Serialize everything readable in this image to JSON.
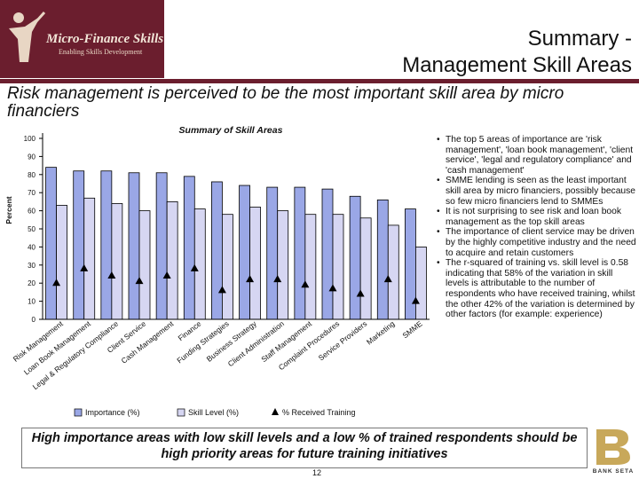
{
  "header": {
    "logo_title": "Micro-Finance Skills Project",
    "logo_subtitle": "Enabling Skills Development",
    "title_line1": "Summary -",
    "title_line2": "Management Skill Areas",
    "accent_color": "#6b1e2e"
  },
  "subtitle": "Risk management is perceived to be the most important skill area by micro financiers",
  "chart_data": {
    "type": "bar",
    "title": "Summary of Skill Areas",
    "ylabel": "Percent",
    "ylim": [
      0,
      100
    ],
    "yticks": [
      0,
      10,
      20,
      30,
      40,
      50,
      60,
      70,
      80,
      90,
      100
    ],
    "categories": [
      "Risk Management",
      "Loan Book Management",
      "Legal & Regulatory Compliance",
      "Client Service",
      "Cash Management",
      "Finance",
      "Funding Strategies",
      "Business Strategy",
      "Client Administration",
      "Staff Management",
      "Complaint Procedures",
      "Service Providers",
      "Marketing",
      "SMME"
    ],
    "series": [
      {
        "name": "Importance (%)",
        "type": "bar",
        "color": "#9aa7e6",
        "values": [
          84,
          82,
          82,
          81,
          81,
          79,
          76,
          74,
          73,
          73,
          72,
          68,
          66,
          61
        ]
      },
      {
        "name": "Skill Level (%)",
        "type": "bar",
        "color": "#d6d6f2",
        "values": [
          63,
          67,
          64,
          60,
          65,
          61,
          58,
          62,
          60,
          58,
          58,
          56,
          52,
          40
        ]
      },
      {
        "name": "% Received Training",
        "type": "marker",
        "color": "#000000",
        "values": [
          20,
          28,
          24,
          21,
          24,
          28,
          16,
          22,
          22,
          19,
          17,
          14,
          22,
          10
        ]
      }
    ],
    "legend_position": "bottom",
    "grid": false
  },
  "bullets": [
    "The top 5 areas of importance are 'risk management', 'loan book management', 'client service', 'legal and regulatory compliance' and 'cash management'",
    "SMME lending is seen as the least important skill area by micro financiers, possibly because so few micro financiers lend to SMMEs",
    "It is not surprising to see risk and loan book management as the top skill areas",
    "The importance of client service may be driven by the highly competitive industry and the need to acquire and retain customers",
    "The r-squared of training vs. skill level is 0.58 indicating that 58% of the variation in skill levels is attributable to the number of respondents who have received training, whilst the other 42% of the variation is determined by other factors (for example: experience)"
  ],
  "footer": {
    "conclusion": "High importance areas with low skill levels and a low % of trained respondents should be high priority areas for future training initiatives",
    "page_number": "12",
    "bank_logo_text": "BANK SETA"
  }
}
